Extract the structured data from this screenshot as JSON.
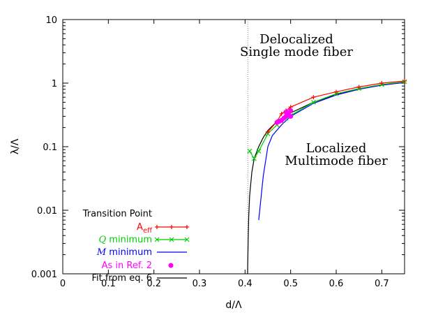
{
  "chart_data": {
    "type": "line",
    "title": "",
    "xlabel": "d/Λ",
    "ylabel": "λ/Λ",
    "xlim": [
      0,
      0.75
    ],
    "ylim": [
      0.001,
      10
    ],
    "y_scale": "log",
    "grid": false,
    "legend_placement": "bottom-left",
    "legend_title": "Transition Point",
    "x_ticks": [
      "0",
      "0.1",
      "0.2",
      "0.3",
      "0.4",
      "0.5",
      "0.6",
      "0.7"
    ],
    "y_ticks": [
      "0.001",
      "0.01",
      "0.1",
      "1",
      "10"
    ],
    "annotations": {
      "upper_line1": "Delocalized",
      "upper_line2": "Single mode fiber",
      "lower_line1": "Localized",
      "lower_line2": "Multimode fiber"
    },
    "vertical_line": {
      "x": 0.406
    },
    "series": [
      {
        "name": "A_eff",
        "legend_main": "A",
        "legend_sub": "eff",
        "color": "#ff0000",
        "marker": "plus",
        "x": [
          0.45,
          0.47,
          0.48,
          0.49,
          0.5,
          0.55,
          0.6,
          0.65,
          0.7,
          0.75
        ],
        "y": [
          0.17,
          0.25,
          0.33,
          0.37,
          0.42,
          0.6,
          0.73,
          0.87,
          1.0,
          1.08
        ]
      },
      {
        "name": "Q minimum",
        "legend_main": "Q",
        "legend_rest": " minimum",
        "color": "#00cc00",
        "marker": "x",
        "x": [
          0.41,
          0.42,
          0.43,
          0.45,
          0.47,
          0.48,
          0.49,
          0.5,
          0.55,
          0.6,
          0.65,
          0.7,
          0.75
        ],
        "y": [
          0.085,
          0.065,
          0.085,
          0.16,
          0.22,
          0.25,
          0.28,
          0.31,
          0.5,
          0.68,
          0.82,
          0.95,
          1.05
        ]
      },
      {
        "name": "M minimum",
        "legend_main": "M",
        "legend_rest": " minimum",
        "color": "#0000ff",
        "marker": "none",
        "x": [
          0.43,
          0.44,
          0.45,
          0.46,
          0.48,
          0.5,
          0.55,
          0.6,
          0.65,
          0.7,
          0.75
        ],
        "y": [
          0.007,
          0.035,
          0.1,
          0.15,
          0.22,
          0.3,
          0.48,
          0.65,
          0.8,
          0.93,
          1.02
        ]
      },
      {
        "name": "As in Ref. 2",
        "legend_label": "As in Ref. 2",
        "color": "#ff00ff",
        "marker": "dot",
        "x": [
          0.47,
          0.475,
          0.48,
          0.485,
          0.49,
          0.49,
          0.495,
          0.5,
          0.5
        ],
        "y": [
          0.24,
          0.25,
          0.26,
          0.28,
          0.3,
          0.35,
          0.33,
          0.37,
          0.3
        ]
      },
      {
        "name": "Fit from eq. 6",
        "legend_label": "Fit from eq. 6",
        "color": "#000000",
        "marker": "none",
        "x": [
          0.4055,
          0.406,
          0.407,
          0.408,
          0.41,
          0.415,
          0.42,
          0.43,
          0.44,
          0.45,
          0.47,
          0.5,
          0.55,
          0.6,
          0.65,
          0.7,
          0.75
        ],
        "y": [
          0.001,
          0.0017,
          0.004,
          0.008,
          0.017,
          0.04,
          0.065,
          0.1,
          0.14,
          0.18,
          0.25,
          0.34,
          0.5,
          0.66,
          0.81,
          0.93,
          1.03
        ]
      }
    ]
  }
}
